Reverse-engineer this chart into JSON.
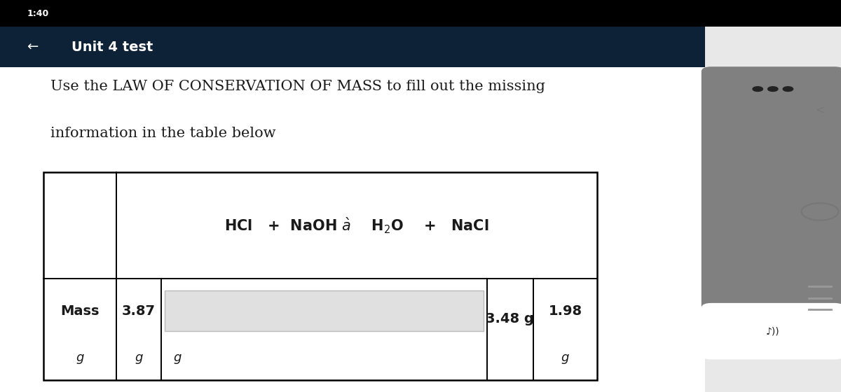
{
  "status_bar_text": "1:40",
  "header_text": "Unit 4 test",
  "header_bg": "#0d2137",
  "header_text_color": "#ffffff",
  "body_bg": "#ffffff",
  "content_bg": "#ffffff",
  "instruction_line1": "Use the LAW OF CONSERVATION OF MASS to fill out the missing",
  "instruction_line2": "information in the table below",
  "row_label": "Mass",
  "col1_value": "3.87",
  "col1_unit": "g",
  "col2_unit": "g",
  "col3_value": "3.48 g",
  "col4_value": "1.98",
  "col4_unit": "g",
  "input_box_bg": "#e0e0e0",
  "input_box_border": "#bbbbbb",
  "text_color": "#1a1a1a",
  "font_size_instruction": 15,
  "font_size_equation": 14,
  "font_size_table": 14,
  "status_bar_bg": "#000000",
  "scrollbar_bg": "#808080",
  "scrollbar_top_dots": "...",
  "right_panel_bg": "#f0f0f0",
  "back_arrow": "←",
  "chevron_right": "<"
}
